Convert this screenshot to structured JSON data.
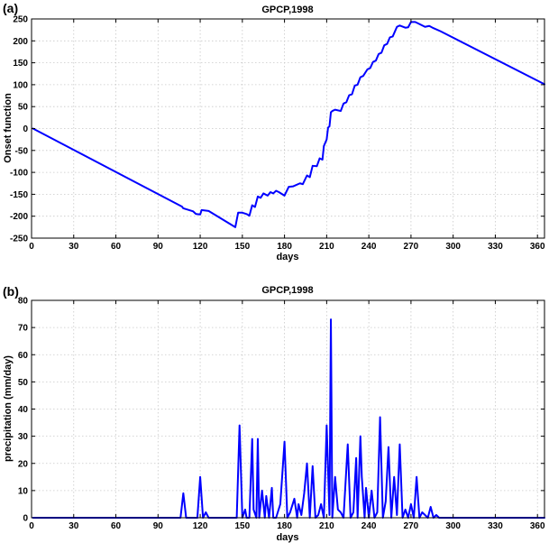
{
  "chart_data": [
    {
      "panel_label": "(a)",
      "type": "line",
      "title": "GPCP,1998",
      "xlabel": "days",
      "ylabel": "Onset function",
      "xlim": [
        0,
        365
      ],
      "ylim": [
        -250,
        250
      ],
      "xticks": [
        0,
        30,
        60,
        90,
        120,
        150,
        180,
        210,
        240,
        270,
        300,
        330,
        360
      ],
      "yticks": [
        -250,
        -200,
        -150,
        -100,
        -50,
        0,
        50,
        100,
        150,
        200,
        250
      ],
      "grid": true,
      "color": "#0000ff",
      "series": [
        {
          "x": [
            1,
            107,
            108,
            115,
            117,
            120,
            121,
            126,
            145,
            147,
            150,
            153,
            155,
            157,
            159,
            161,
            163,
            165,
            168,
            170,
            172,
            174,
            176,
            180,
            183,
            186,
            191,
            193,
            196,
            198,
            200,
            203,
            205,
            207,
            208,
            210,
            211,
            212,
            213,
            214,
            216,
            220,
            222,
            224,
            226,
            228,
            230,
            232,
            234,
            236,
            239,
            241,
            243,
            245,
            247,
            249,
            251,
            253,
            255,
            257,
            260,
            262,
            266,
            268,
            270,
            273,
            275,
            280,
            283,
            286,
            291,
            365
          ],
          "y": [
            0,
            -178,
            -182,
            -189,
            -195,
            -196,
            -186,
            -188,
            -225,
            -192,
            -192,
            -195,
            -199,
            -175,
            -179,
            -155,
            -158,
            -148,
            -153,
            -145,
            -148,
            -142,
            -145,
            -153,
            -133,
            -132,
            -125,
            -127,
            -107,
            -111,
            -85,
            -86,
            -68,
            -71,
            -40,
            -25,
            2,
            5,
            37,
            40,
            43,
            40,
            57,
            60,
            76,
            78,
            98,
            100,
            117,
            120,
            135,
            138,
            152,
            155,
            170,
            173,
            190,
            193,
            208,
            210,
            232,
            235,
            230,
            231,
            243,
            243,
            240,
            232,
            234,
            229,
            222,
            101
          ]
        }
      ]
    },
    {
      "panel_label": "(b)",
      "type": "line",
      "title": "GPCP,1998",
      "xlabel": "days",
      "ylabel": "precipitation (mm/day)",
      "xlim": [
        0,
        365
      ],
      "ylim": [
        0,
        80
      ],
      "xticks": [
        0,
        30,
        60,
        90,
        120,
        150,
        180,
        210,
        240,
        270,
        300,
        330,
        360
      ],
      "yticks": [
        0,
        10,
        20,
        30,
        40,
        50,
        60,
        70,
        80
      ],
      "grid": true,
      "color": "#0000ff",
      "series": [
        {
          "x": [
            1,
            106,
            108,
            110,
            118,
            120,
            122,
            124,
            126,
            146,
            148,
            150,
            152,
            153,
            155,
            157,
            158,
            160,
            161,
            162,
            164,
            166,
            167,
            169,
            171,
            172,
            174,
            177,
            180,
            182,
            184,
            187,
            189,
            190,
            192,
            194,
            196,
            198,
            200,
            202,
            204,
            206,
            208,
            210,
            212,
            213,
            214,
            216,
            218,
            220,
            222,
            225,
            227,
            229,
            231,
            232,
            234,
            235,
            237,
            238,
            240,
            242,
            244,
            246,
            248,
            250,
            252,
            254,
            256,
            258,
            260,
            262,
            264,
            266,
            268,
            270,
            272,
            274,
            276,
            278,
            282,
            284,
            286,
            288,
            290,
            292,
            296,
            365
          ],
          "y": [
            0,
            0,
            9,
            0,
            0,
            15,
            0,
            2,
            0,
            0,
            34,
            0,
            3,
            0,
            0,
            29,
            3,
            0,
            29,
            0,
            10,
            0,
            8,
            0,
            11,
            0,
            0,
            5,
            28,
            0,
            2,
            7,
            0,
            5,
            1,
            9,
            20,
            0,
            19,
            0,
            1,
            5,
            0,
            34,
            1,
            73,
            0,
            15,
            3,
            2,
            0,
            27,
            0,
            2,
            22,
            0,
            30,
            15,
            0,
            11,
            0,
            10,
            0,
            2,
            37,
            0,
            6,
            26,
            0,
            15,
            1,
            27,
            0,
            3,
            0,
            5,
            0,
            15,
            0,
            2,
            0,
            4,
            0,
            1,
            0,
            0,
            0,
            0
          ]
        }
      ]
    }
  ]
}
